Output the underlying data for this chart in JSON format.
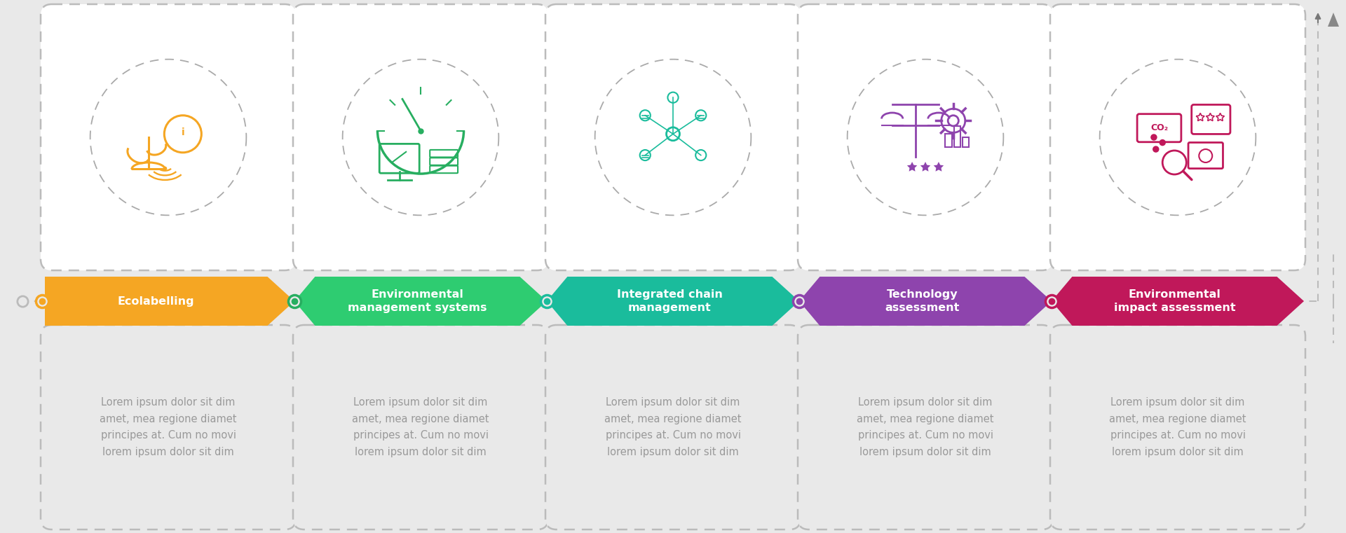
{
  "background_color": "#e9e9e9",
  "steps": [
    {
      "title": "Ecolabelling",
      "title_lines": [
        "Ecolabelling"
      ],
      "color": "#F5A623",
      "dot_color": "#F5A623",
      "text": "Lorem ipsum dolor sit dim\namet, mea regione diamet\nprincipes at. Cum no movi\nlorem ipsum dolor sit dim"
    },
    {
      "title": "Environmental\nmanagement systems",
      "title_lines": [
        "Environmental",
        "management systems"
      ],
      "color": "#2ECC71",
      "dot_color": "#27AE60",
      "text": "Lorem ipsum dolor sit dim\namet, mea regione diamet\nprincipes at. Cum no movi\nlorem ipsum dolor sit dim"
    },
    {
      "title": "Integrated chain\nmanagement",
      "title_lines": [
        "Integrated chain",
        "management"
      ],
      "color": "#1ABC9C",
      "dot_color": "#1ABC9C",
      "text": "Lorem ipsum dolor sit dim\namet, mea regione diamet\nprincipes at. Cum no movi\nlorem ipsum dolor sit dim"
    },
    {
      "title": "Technology\nassessment",
      "title_lines": [
        "Technology",
        "assessment"
      ],
      "color": "#8E44AD",
      "dot_color": "#8E44AD",
      "text": "Lorem ipsum dolor sit dim\namet, mea regione diamet\nprincipes at. Cum no movi\nlorem ipsum dolor sit dim"
    },
    {
      "title": "Environmental\nimpact assessment",
      "title_lines": [
        "Environmental",
        "impact assessment"
      ],
      "color": "#C0185A",
      "dot_color": "#C0185A",
      "text": "Lorem ipsum dolor sit dim\namet, mea regione diamet\nprincipes at. Cum no movi\nlorem ipsum dolor sit dim"
    }
  ],
  "icon_colors": [
    "#F5A623",
    "#27AE60",
    "#1ABC9C",
    "#8E44AD",
    "#C0185A"
  ],
  "body_text_color": "#999999",
  "title_text_color": "#ffffff",
  "dashed_color": "#bbbbbb",
  "timeline_color": "#bbbbbb"
}
